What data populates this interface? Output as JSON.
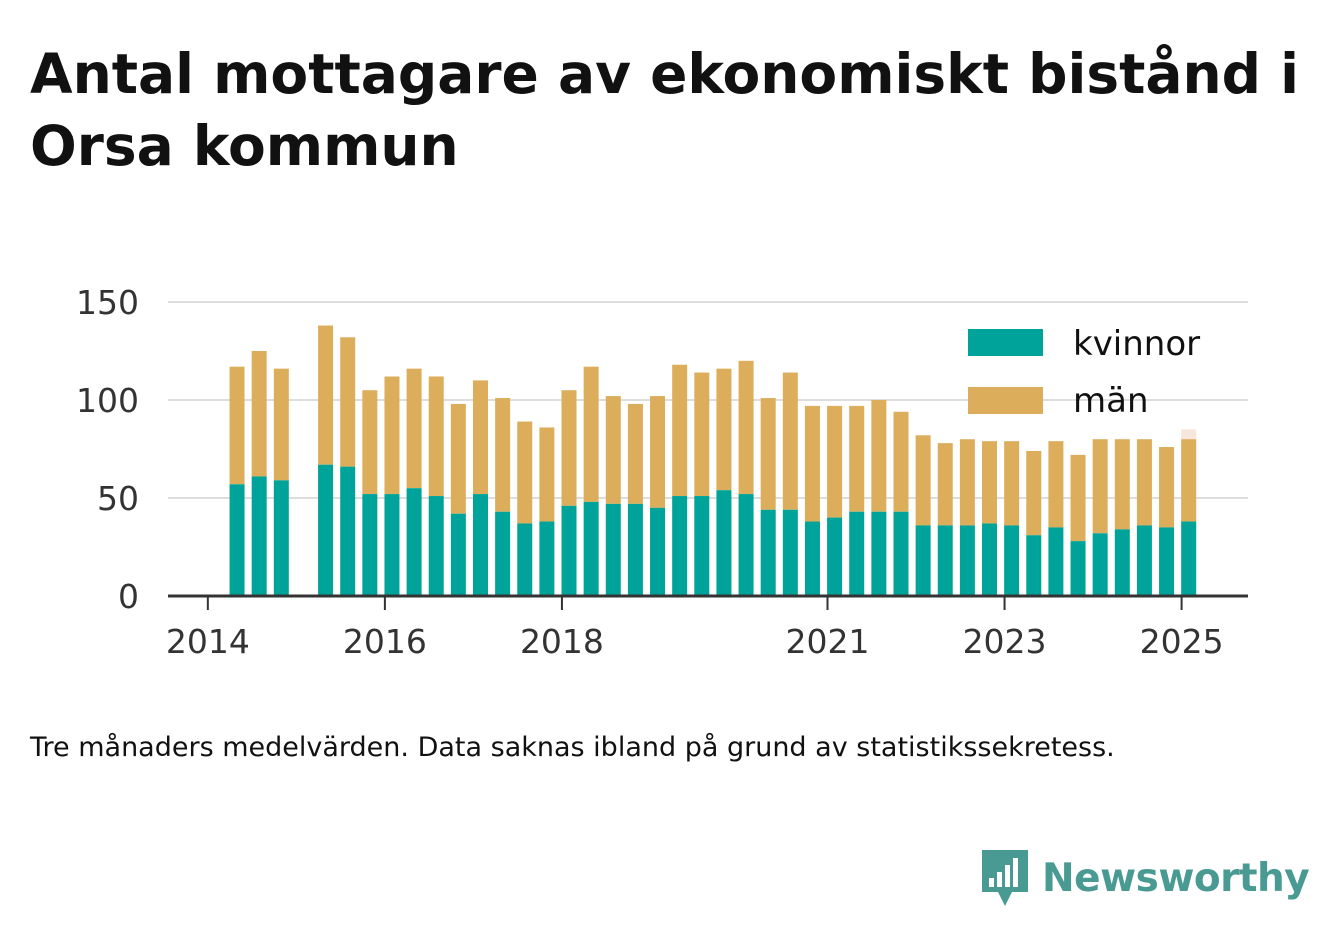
{
  "title": "Antal mottagare av ekonomiskt bistånd i Orsa kommun",
  "note": "Tre månaders medelvärden. Data saknas ibland på grund av statistikssekretess.",
  "brand": {
    "name": "Newsworthy"
  },
  "colors": {
    "kvinnor": "#00a399",
    "man": "#dcae5c",
    "projection": "#f6e6dc",
    "grid": "#dddddd",
    "axis": "#333333",
    "brand": "#4a9a94"
  },
  "chart_data": {
    "type": "bar",
    "stacked": true,
    "legend_position": "top-right",
    "grid": true,
    "ylim": [
      0,
      150
    ],
    "yticks": [
      0,
      50,
      100,
      150
    ],
    "xlim": [
      2013.55,
      2025.75
    ],
    "xticks": [
      {
        "value": 2014,
        "label": "2014"
      },
      {
        "value": 2016,
        "label": "2016"
      },
      {
        "value": 2018,
        "label": "2018"
      },
      {
        "value": 2021,
        "label": "2021"
      },
      {
        "value": 2023,
        "label": "2023"
      },
      {
        "value": 2025,
        "label": "2025"
      }
    ],
    "x": [
      2014.33,
      2014.58,
      2014.83,
      2015.33,
      2015.58,
      2015.83,
      2016.08,
      2016.33,
      2016.58,
      2016.83,
      2017.08,
      2017.33,
      2017.58,
      2017.83,
      2018.08,
      2018.33,
      2018.58,
      2018.83,
      2019.08,
      2019.33,
      2019.58,
      2019.83,
      2020.08,
      2020.33,
      2020.58,
      2020.83,
      2021.08,
      2021.33,
      2021.58,
      2021.83,
      2022.08,
      2022.33,
      2022.58,
      2022.83,
      2023.08,
      2023.33,
      2023.58,
      2023.83,
      2024.08,
      2024.33,
      2024.58,
      2024.83,
      2025.08
    ],
    "series": [
      {
        "name": "kvinnor",
        "values": [
          57,
          61,
          59,
          67,
          66,
          52,
          52,
          55,
          51,
          42,
          52,
          43,
          37,
          38,
          46,
          48,
          47,
          47,
          45,
          51,
          51,
          54,
          52,
          44,
          44,
          38,
          40,
          43,
          43,
          43,
          36,
          36,
          36,
          37,
          36,
          31,
          35,
          28,
          32,
          34,
          36,
          35,
          38
        ]
      },
      {
        "name": "män",
        "values": [
          60,
          64,
          57,
          71,
          66,
          53,
          60,
          61,
          61,
          56,
          58,
          58,
          52,
          48,
          59,
          69,
          55,
          51,
          57,
          67,
          63,
          62,
          68,
          57,
          70,
          59,
          57,
          54,
          57,
          51,
          46,
          42,
          44,
          42,
          43,
          43,
          44,
          44,
          48,
          46,
          44,
          41,
          42
        ]
      }
    ],
    "projection": {
      "x": 2025.08,
      "total": 85
    }
  }
}
